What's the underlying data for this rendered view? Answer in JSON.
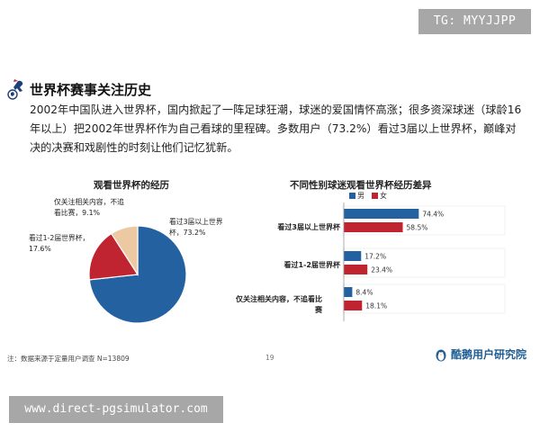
{
  "watermark_top": "TG: MYYJJPP",
  "watermark_bottom": "www.direct-pgsimulator.com",
  "section": {
    "title": "世界杯赛事关注历史",
    "paragraph": "2002年中国队进入世界杯，国内掀起了一阵足球狂潮，球迷的爱国情怀高涨；很多资深球迷（球龄16年以上）把2002年世界杯作为自己看球的里程碑。多数用户（73.2%）看过3届以上世界杯，巅峰对决的决赛和戏剧性的时刻让他们记忆犹新。"
  },
  "footer": {
    "note": "注：数据来源于定量用户调查 N=13809",
    "page_number": "19",
    "brand": "酷鹅用户研究院"
  },
  "chart_data": [
    {
      "type": "pie",
      "title": "观看世界杯的经历",
      "slices": [
        {
          "label": "看过3届以上世界杯，73.2%",
          "value": 73.2,
          "color": "#2361a1"
        },
        {
          "label": "看过1-2届世界杯，17.6%",
          "value": 17.6,
          "color": "#bf2430"
        },
        {
          "label": "仅关注相关内容，不追看比赛，9.1%",
          "value": 9.1,
          "color": "#ecc9a3"
        }
      ]
    },
    {
      "type": "bar",
      "orientation": "horizontal",
      "title": "不同性别球迷观看世界杯经历差异",
      "categories": [
        "看过3届以上世界杯",
        "看过1-2届世界杯",
        "仅关注相关内容，不追看比赛"
      ],
      "series": [
        {
          "name": "男",
          "values": [
            74.4,
            17.2,
            8.4
          ],
          "color": "#2361a1"
        },
        {
          "name": "女",
          "values": [
            58.5,
            23.4,
            18.1
          ],
          "color": "#bf2430"
        }
      ],
      "value_labels": [
        [
          "74.4%",
          "17.2%",
          "8.4%"
        ],
        [
          "58.5%",
          "23.4%",
          "18.1%"
        ]
      ],
      "legend_position": "top",
      "xlim": [
        0,
        100
      ]
    }
  ]
}
